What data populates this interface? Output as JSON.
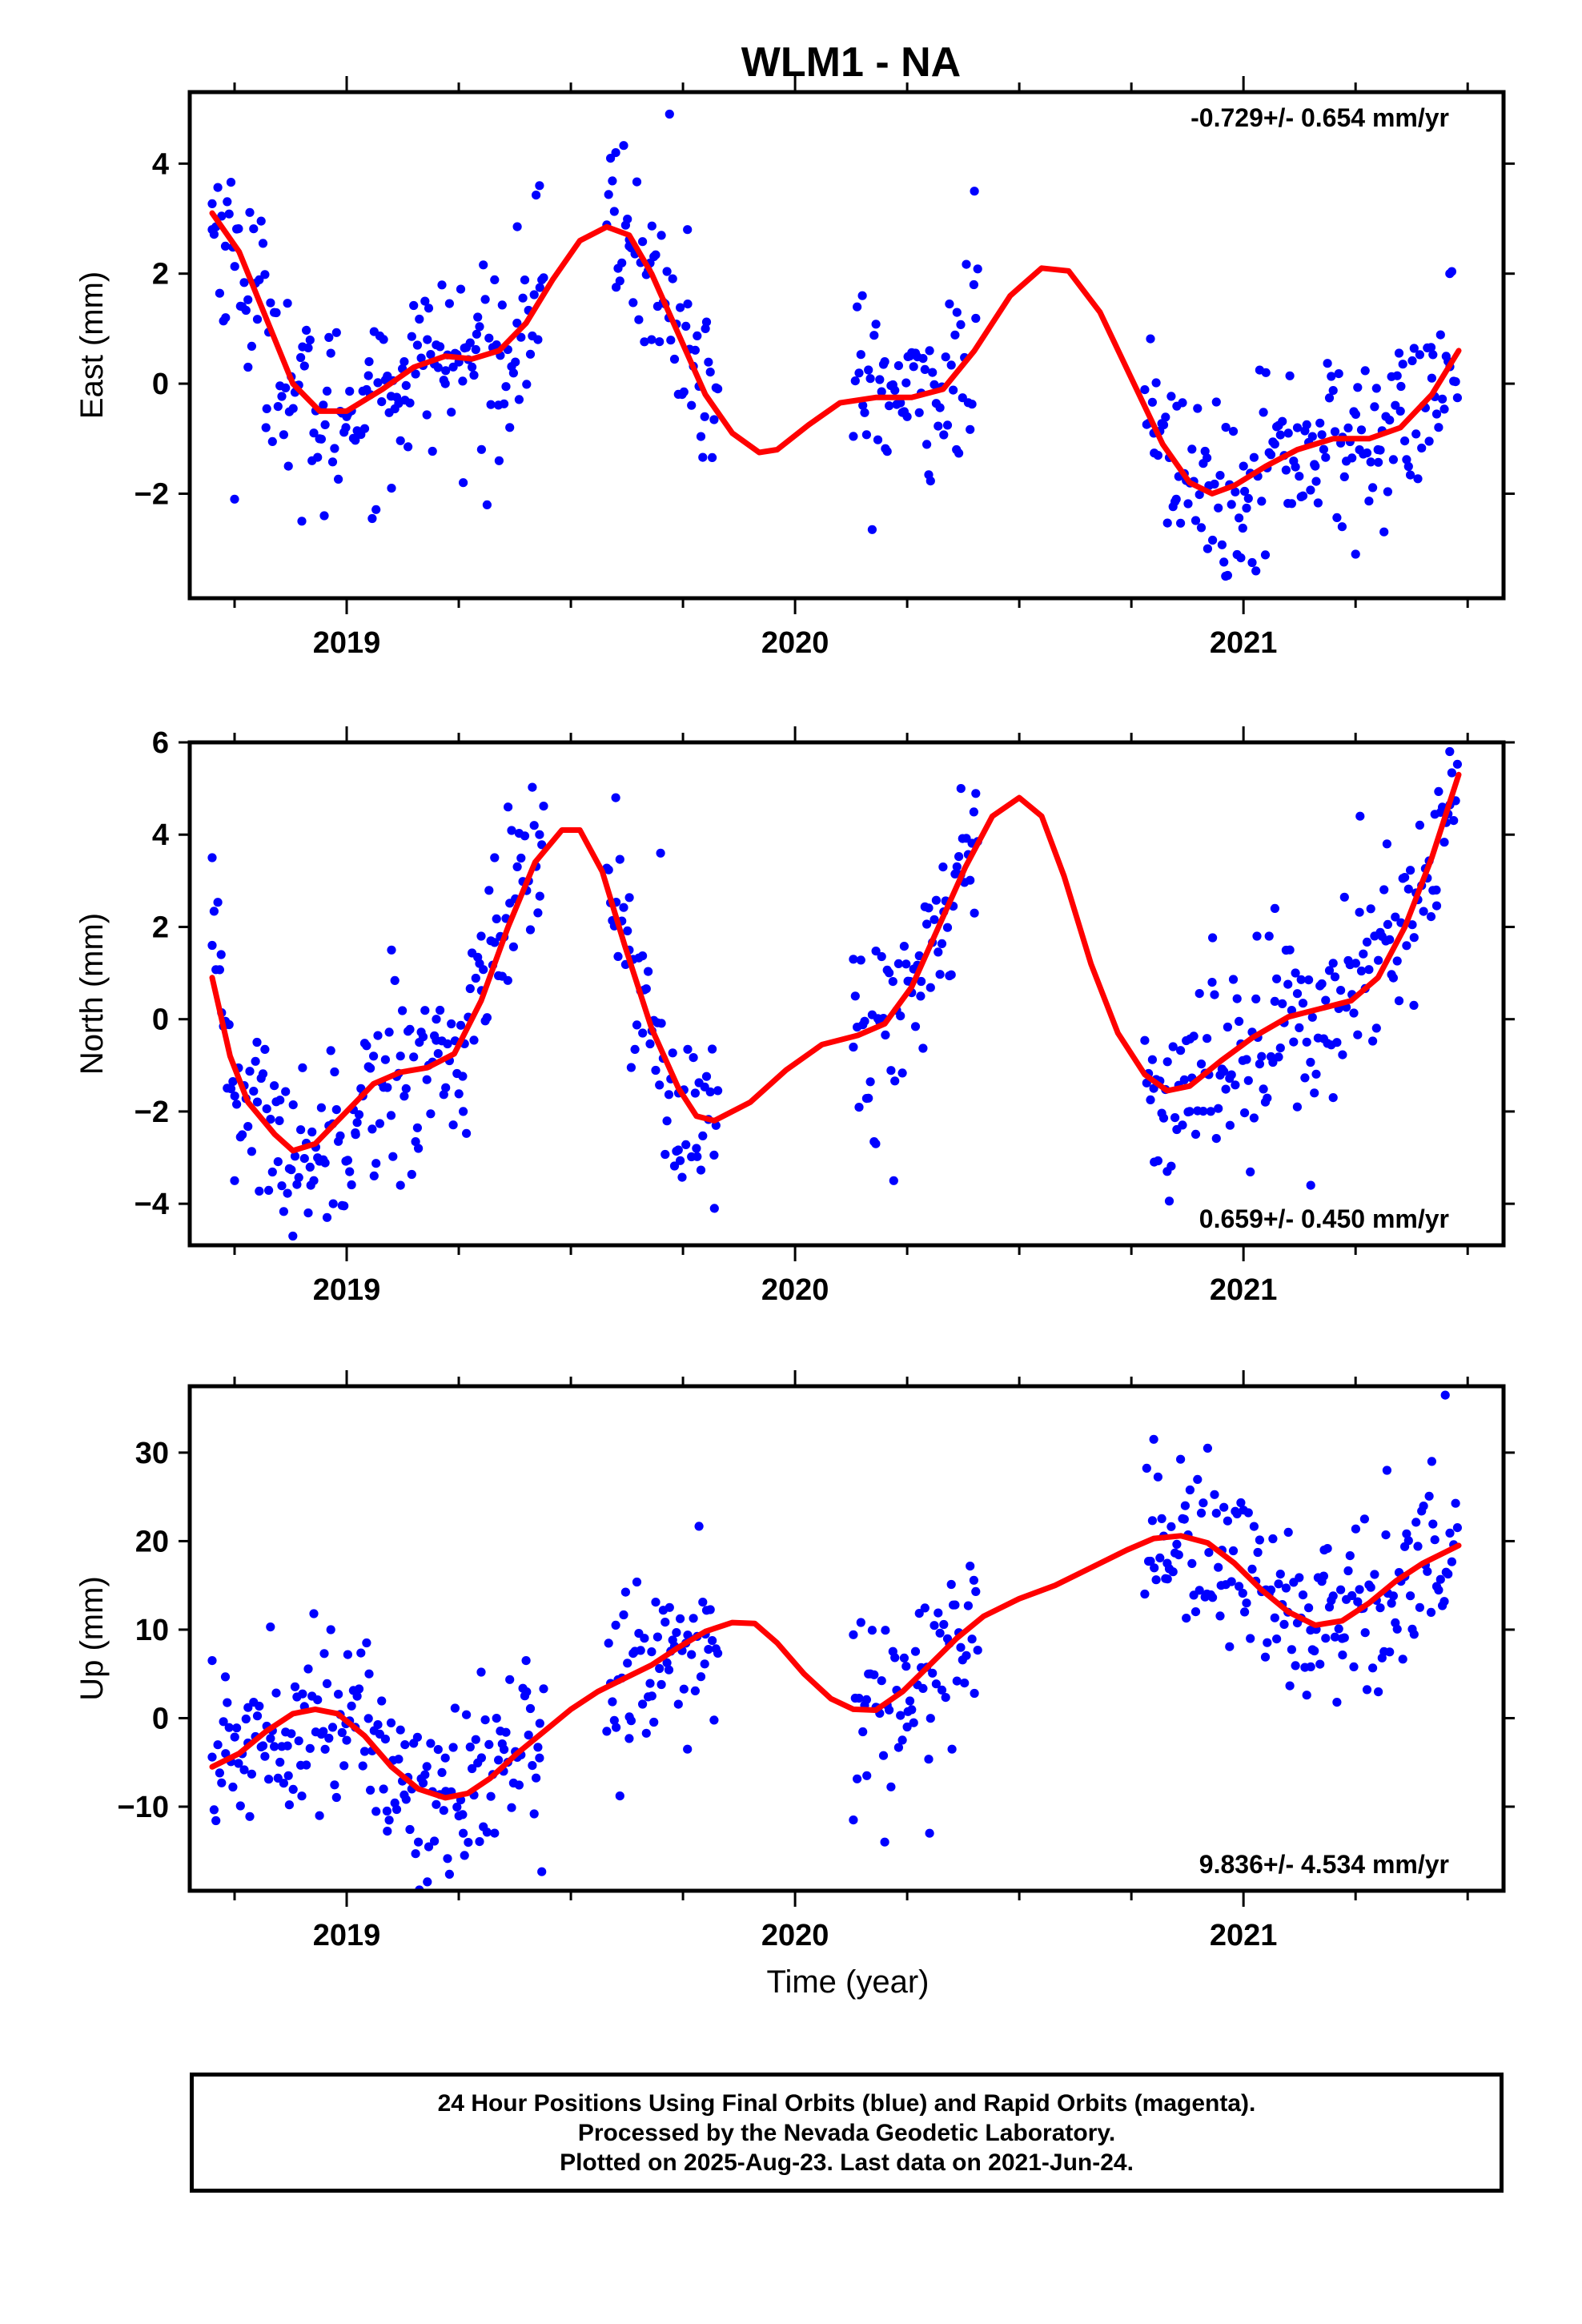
{
  "title": "WLM1 - NA",
  "colors": {
    "points": "#0000ff",
    "fit": "#ff0000",
    "frame": "#000000"
  },
  "xlabel": "Time (year)",
  "footer": {
    "line1": "24 Hour Positions Using Final Orbits (blue) and Rapid Orbits (magenta).",
    "line2": "Processed by the Nevada Geodetic Laboratory.",
    "line3": "Plotted on 2025-Aug-23. Last data on 2021-Jun-24."
  },
  "chart_data": [
    {
      "type": "scatter",
      "ylabel": "East (mm)",
      "rate": "-0.729+/- 0.654 mm/yr",
      "rate_position": "top-right",
      "xlim": [
        2018.65,
        2021.58
      ],
      "ylim": [
        -3.9,
        5.3
      ],
      "x_ticks": [
        2019,
        2020,
        2021
      ],
      "x_tick_labels": [
        "2019",
        "2020",
        "2021"
      ],
      "y_ticks": [
        -2,
        0,
        2,
        4
      ],
      "y_tick_labels": [
        "−2",
        "0",
        "2",
        "4"
      ],
      "data_segments": [
        [
          2018.7,
          2019.44
        ],
        [
          2019.58,
          2019.83
        ],
        [
          2020.13,
          2020.41
        ],
        [
          2020.78,
          2021.48
        ]
      ],
      "point_samples": [
        [
          2018.7,
          2.8
        ],
        [
          2018.73,
          1.2
        ],
        [
          2018.75,
          -2.1
        ],
        [
          2018.78,
          0.3
        ],
        [
          2018.82,
          -0.8
        ],
        [
          2018.87,
          -1.5
        ],
        [
          2018.9,
          -2.5
        ],
        [
          2018.95,
          -2.4
        ],
        [
          2019.0,
          -0.6
        ],
        [
          2019.05,
          0.4
        ],
        [
          2019.1,
          -1.9
        ],
        [
          2019.13,
          -0.3
        ],
        [
          2019.18,
          0.8
        ],
        [
          2019.22,
          0.0
        ],
        [
          2019.26,
          -1.8
        ],
        [
          2019.29,
          0.9
        ],
        [
          2019.34,
          -1.4
        ],
        [
          2019.38,
          1.1
        ],
        [
          2019.43,
          3.6
        ],
        [
          2019.6,
          4.2
        ],
        [
          2019.63,
          2.5
        ],
        [
          2019.68,
          0.8
        ],
        [
          2019.72,
          4.9
        ],
        [
          2019.76,
          2.8
        ],
        [
          2019.8,
          1.0
        ],
        [
          2020.15,
          1.6
        ],
        [
          2020.2,
          0.4
        ],
        [
          2020.25,
          -0.6
        ],
        [
          2020.3,
          0.6
        ],
        [
          2020.36,
          -1.2
        ],
        [
          2020.4,
          3.5
        ],
        [
          2020.8,
          -0.9
        ],
        [
          2020.85,
          -2.1
        ],
        [
          2020.92,
          -3.0
        ],
        [
          2020.96,
          -3.5
        ],
        [
          2021.0,
          -1.5
        ],
        [
          2021.05,
          0.2
        ],
        [
          2021.1,
          -0.9
        ],
        [
          2021.16,
          -1.5
        ],
        [
          2021.22,
          -2.6
        ],
        [
          2021.25,
          -3.1
        ],
        [
          2021.3,
          -1.2
        ],
        [
          2021.35,
          -0.5
        ],
        [
          2021.42,
          0.1
        ],
        [
          2021.46,
          2.0
        ]
      ],
      "fit_curve": [
        [
          2018.7,
          3.1
        ],
        [
          2018.76,
          2.4
        ],
        [
          2018.82,
          1.2
        ],
        [
          2018.88,
          0.0
        ],
        [
          2018.94,
          -0.5
        ],
        [
          2019.0,
          -0.5
        ],
        [
          2019.08,
          -0.1
        ],
        [
          2019.15,
          0.3
        ],
        [
          2019.22,
          0.5
        ],
        [
          2019.28,
          0.45
        ],
        [
          2019.34,
          0.6
        ],
        [
          2019.4,
          1.1
        ],
        [
          2019.46,
          1.9
        ],
        [
          2019.52,
          2.6
        ],
        [
          2019.58,
          2.85
        ],
        [
          2019.63,
          2.7
        ],
        [
          2019.68,
          2.0
        ],
        [
          2019.74,
          0.9
        ],
        [
          2019.8,
          -0.2
        ],
        [
          2019.86,
          -0.9
        ],
        [
          2019.92,
          -1.25
        ],
        [
          2019.96,
          -1.2
        ],
        [
          2020.03,
          -0.75
        ],
        [
          2020.1,
          -0.35
        ],
        [
          2020.18,
          -0.25
        ],
        [
          2020.26,
          -0.25
        ],
        [
          2020.33,
          -0.1
        ],
        [
          2020.4,
          0.6
        ],
        [
          2020.48,
          1.6
        ],
        [
          2020.55,
          2.1
        ],
        [
          2020.61,
          2.05
        ],
        [
          2020.68,
          1.3
        ],
        [
          2020.75,
          0.1
        ],
        [
          2020.82,
          -1.1
        ],
        [
          2020.88,
          -1.8
        ],
        [
          2020.93,
          -2.0
        ],
        [
          2020.98,
          -1.85
        ],
        [
          2021.05,
          -1.5
        ],
        [
          2021.12,
          -1.2
        ],
        [
          2021.2,
          -1.0
        ],
        [
          2021.28,
          -1.0
        ],
        [
          2021.35,
          -0.8
        ],
        [
          2021.42,
          -0.2
        ],
        [
          2021.48,
          0.6
        ]
      ]
    },
    {
      "type": "scatter",
      "ylabel": "North (mm)",
      "rate": "0.659+/- 0.450 mm/yr",
      "rate_position": "bottom-right",
      "xlim": [
        2018.65,
        2021.58
      ],
      "ylim": [
        -4.9,
        6.0
      ],
      "x_ticks": [
        2019,
        2020,
        2021
      ],
      "x_tick_labels": [
        "2019",
        "2020",
        "2021"
      ],
      "y_ticks": [
        -4,
        -2,
        0,
        2,
        4,
        6
      ],
      "y_tick_labels": [
        "−4",
        "−2",
        "0",
        "2",
        "4",
        "6"
      ],
      "data_segments": [
        [
          2018.7,
          2019.44
        ],
        [
          2019.58,
          2019.83
        ],
        [
          2020.13,
          2020.41
        ],
        [
          2020.78,
          2021.48
        ]
      ],
      "point_samples": [
        [
          2018.7,
          3.5
        ],
        [
          2018.72,
          1.4
        ],
        [
          2018.75,
          -3.5
        ],
        [
          2018.8,
          -0.5
        ],
        [
          2018.85,
          -2.2
        ],
        [
          2018.88,
          -4.7
        ],
        [
          2018.92,
          -3.6
        ],
        [
          2018.97,
          -4.0
        ],
        [
          2019.02,
          -2.5
        ],
        [
          2019.06,
          -0.8
        ],
        [
          2019.1,
          1.5
        ],
        [
          2019.12,
          -3.6
        ],
        [
          2019.16,
          -2.8
        ],
        [
          2019.2,
          0.0
        ],
        [
          2019.26,
          -2.0
        ],
        [
          2019.3,
          1.8
        ],
        [
          2019.33,
          3.5
        ],
        [
          2019.36,
          4.6
        ],
        [
          2019.4,
          2.8
        ],
        [
          2019.43,
          4.0
        ],
        [
          2019.6,
          4.8
        ],
        [
          2019.63,
          1.5
        ],
        [
          2019.66,
          -0.3
        ],
        [
          2019.7,
          3.6
        ],
        [
          2019.74,
          -1.6
        ],
        [
          2019.78,
          -2.8
        ],
        [
          2019.82,
          -4.1
        ],
        [
          2020.13,
          1.3
        ],
        [
          2020.18,
          -2.7
        ],
        [
          2020.22,
          -3.5
        ],
        [
          2020.28,
          0.5
        ],
        [
          2020.33,
          3.3
        ],
        [
          2020.37,
          5.0
        ],
        [
          2020.4,
          2.3
        ],
        [
          2020.8,
          -1.5
        ],
        [
          2020.83,
          -3.3
        ],
        [
          2020.88,
          -2.0
        ],
        [
          2020.93,
          0.8
        ],
        [
          2020.97,
          -2.3
        ],
        [
          2021.03,
          1.8
        ],
        [
          2021.07,
          2.4
        ],
        [
          2021.12,
          -1.9
        ],
        [
          2021.15,
          -3.6
        ],
        [
          2021.2,
          -1.7
        ],
        [
          2021.26,
          4.4
        ],
        [
          2021.32,
          3.8
        ],
        [
          2021.38,
          0.3
        ],
        [
          2021.43,
          2.8
        ],
        [
          2021.46,
          5.8
        ]
      ],
      "fit_curve": [
        [
          2018.7,
          0.9
        ],
        [
          2018.74,
          -0.8
        ],
        [
          2018.78,
          -1.8
        ],
        [
          2018.84,
          -2.5
        ],
        [
          2018.88,
          -2.85
        ],
        [
          2018.93,
          -2.7
        ],
        [
          2019.0,
          -2.0
        ],
        [
          2019.06,
          -1.4
        ],
        [
          2019.12,
          -1.15
        ],
        [
          2019.18,
          -1.05
        ],
        [
          2019.24,
          -0.75
        ],
        [
          2019.3,
          0.4
        ],
        [
          2019.36,
          2.0
        ],
        [
          2019.42,
          3.4
        ],
        [
          2019.48,
          4.1
        ],
        [
          2019.52,
          4.1
        ],
        [
          2019.57,
          3.2
        ],
        [
          2019.62,
          1.6
        ],
        [
          2019.68,
          -0.2
        ],
        [
          2019.74,
          -1.5
        ],
        [
          2019.78,
          -2.1
        ],
        [
          2019.82,
          -2.2
        ],
        [
          2019.9,
          -1.8
        ],
        [
          2019.98,
          -1.1
        ],
        [
          2020.06,
          -0.55
        ],
        [
          2020.14,
          -0.35
        ],
        [
          2020.2,
          -0.1
        ],
        [
          2020.26,
          0.7
        ],
        [
          2020.32,
          2.0
        ],
        [
          2020.38,
          3.3
        ],
        [
          2020.44,
          4.4
        ],
        [
          2020.5,
          4.8
        ],
        [
          2020.55,
          4.4
        ],
        [
          2020.6,
          3.1
        ],
        [
          2020.66,
          1.2
        ],
        [
          2020.72,
          -0.3
        ],
        [
          2020.78,
          -1.2
        ],
        [
          2020.83,
          -1.55
        ],
        [
          2020.88,
          -1.45
        ],
        [
          2020.95,
          -0.9
        ],
        [
          2021.02,
          -0.4
        ],
        [
          2021.1,
          0.05
        ],
        [
          2021.18,
          0.25
        ],
        [
          2021.24,
          0.4
        ],
        [
          2021.3,
          0.9
        ],
        [
          2021.36,
          2.0
        ],
        [
          2021.42,
          3.5
        ],
        [
          2021.48,
          5.3
        ]
      ]
    },
    {
      "type": "scatter",
      "ylabel": "Up (mm)",
      "rate": "9.836+/- 4.534 mm/yr",
      "rate_position": "bottom-right",
      "xlim": [
        2018.65,
        2021.58
      ],
      "ylim": [
        -19.5,
        37.5
      ],
      "x_ticks": [
        2019,
        2020,
        2021
      ],
      "x_tick_labels": [
        "2019",
        "2020",
        "2021"
      ],
      "y_ticks": [
        -10,
        0,
        10,
        20,
        30
      ],
      "y_tick_labels": [
        "−10",
        "0",
        "10",
        "20",
        "30"
      ],
      "data_segments": [
        [
          2018.7,
          2019.44
        ],
        [
          2019.58,
          2019.83
        ],
        [
          2020.13,
          2020.41
        ],
        [
          2020.78,
          2021.48
        ]
      ],
      "point_samples": [
        [
          2018.7,
          6.5
        ],
        [
          2018.73,
          -4.0
        ],
        [
          2018.78,
          1.2
        ],
        [
          2018.83,
          10.3
        ],
        [
          2018.87,
          -6.5
        ],
        [
          2018.9,
          -8.8
        ],
        [
          2018.95,
          7.3
        ],
        [
          2019.0,
          -2.5
        ],
        [
          2019.05,
          5.0
        ],
        [
          2019.09,
          -10.5
        ],
        [
          2019.13,
          -3.0
        ],
        [
          2019.16,
          -14.0
        ],
        [
          2019.18,
          -18.5
        ],
        [
          2019.22,
          -4.5
        ],
        [
          2019.26,
          -13.0
        ],
        [
          2019.3,
          5.2
        ],
        [
          2019.35,
          -6.0
        ],
        [
          2019.4,
          6.5
        ],
        [
          2019.43,
          -4.5
        ],
        [
          2019.6,
          10.5
        ],
        [
          2019.63,
          -2.3
        ],
        [
          2019.68,
          7.5
        ],
        [
          2019.72,
          12.5
        ],
        [
          2019.76,
          -3.5
        ],
        [
          2019.8,
          9.5
        ],
        [
          2020.13,
          -11.5
        ],
        [
          2020.16,
          -6.5
        ],
        [
          2020.2,
          -14.0
        ],
        [
          2020.25,
          -1.0
        ],
        [
          2020.3,
          -13.0
        ],
        [
          2020.35,
          -3.5
        ],
        [
          2020.4,
          2.8
        ],
        [
          2020.8,
          31.5
        ],
        [
          2020.83,
          17.5
        ],
        [
          2020.87,
          24.0
        ],
        [
          2020.92,
          30.5
        ],
        [
          2020.95,
          15.0
        ],
        [
          2021.0,
          23.5
        ],
        [
          2021.05,
          14.5
        ],
        [
          2021.1,
          21.0
        ],
        [
          2021.15,
          5.8
        ],
        [
          2021.18,
          19.0
        ],
        [
          2021.22,
          9.0
        ],
        [
          2021.27,
          22.5
        ],
        [
          2021.32,
          28.0
        ],
        [
          2021.36,
          16.0
        ],
        [
          2021.42,
          29.0
        ],
        [
          2021.45,
          36.5
        ]
      ],
      "fit_curve": [
        [
          2018.7,
          -5.5
        ],
        [
          2018.76,
          -4.0
        ],
        [
          2018.82,
          -1.5
        ],
        [
          2018.88,
          0.5
        ],
        [
          2018.93,
          1.0
        ],
        [
          2018.98,
          0.5
        ],
        [
          2019.04,
          -2.0
        ],
        [
          2019.1,
          -5.5
        ],
        [
          2019.16,
          -8.0
        ],
        [
          2019.22,
          -9.0
        ],
        [
          2019.27,
          -8.5
        ],
        [
          2019.32,
          -6.8
        ],
        [
          2019.38,
          -4.0
        ],
        [
          2019.44,
          -1.5
        ],
        [
          2019.5,
          1.0
        ],
        [
          2019.56,
          3.0
        ],
        [
          2019.62,
          4.5
        ],
        [
          2019.68,
          6.0
        ],
        [
          2019.74,
          8.0
        ],
        [
          2019.8,
          9.8
        ],
        [
          2019.86,
          10.8
        ],
        [
          2019.91,
          10.7
        ],
        [
          2019.96,
          8.5
        ],
        [
          2020.02,
          5.0
        ],
        [
          2020.08,
          2.2
        ],
        [
          2020.13,
          1.0
        ],
        [
          2020.18,
          0.9
        ],
        [
          2020.24,
          3.0
        ],
        [
          2020.3,
          6.0
        ],
        [
          2020.36,
          9.0
        ],
        [
          2020.42,
          11.5
        ],
        [
          2020.5,
          13.5
        ],
        [
          2020.58,
          15.0
        ],
        [
          2020.66,
          17.0
        ],
        [
          2020.74,
          19.0
        ],
        [
          2020.8,
          20.3
        ],
        [
          2020.86,
          20.6
        ],
        [
          2020.92,
          19.8
        ],
        [
          2020.98,
          17.5
        ],
        [
          2021.04,
          14.5
        ],
        [
          2021.1,
          12.0
        ],
        [
          2021.16,
          10.5
        ],
        [
          2021.22,
          11.0
        ],
        [
          2021.28,
          13.0
        ],
        [
          2021.34,
          15.5
        ],
        [
          2021.4,
          17.5
        ],
        [
          2021.48,
          19.5
        ]
      ]
    }
  ]
}
